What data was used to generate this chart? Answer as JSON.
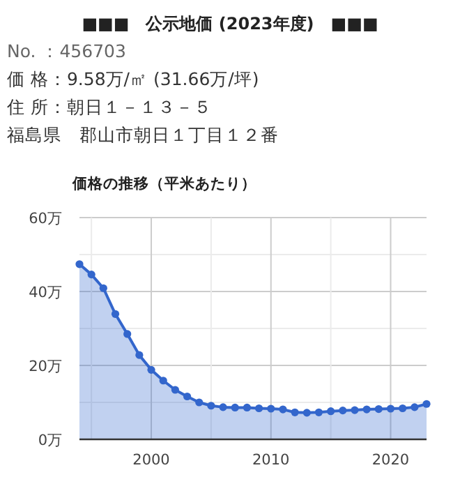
{
  "chart_data": {
    "type": "area",
    "title": "■■■　公示地価 (2023年度)　■■■",
    "subtitle": "価格の推移（平米あたり）",
    "annotations": [
      "No. ：456703",
      "価 格：9.58万/㎡ (31.66万/坪)",
      "住 所：朝日１－１３－５",
      "福島県　郡山市朝日１丁目１２番"
    ],
    "x": [
      1994,
      1995,
      1996,
      1997,
      1998,
      1999,
      2000,
      2001,
      2002,
      2003,
      2004,
      2005,
      2006,
      2007,
      2008,
      2009,
      2010,
      2011,
      2012,
      2013,
      2014,
      2015,
      2016,
      2017,
      2018,
      2019,
      2020,
      2021,
      2022,
      2023
    ],
    "series": [
      {
        "color": "#3366cc",
        "values": [
          47.4,
          44.6,
          40.9,
          33.9,
          28.5,
          22.8,
          18.8,
          15.9,
          13.4,
          11.6,
          10.0,
          9.1,
          8.7,
          8.6,
          8.6,
          8.4,
          8.3,
          8.1,
          7.3,
          7.2,
          7.3,
          7.6,
          7.8,
          7.9,
          8.1,
          8.2,
          8.3,
          8.4,
          8.7,
          9.58
        ]
      }
    ],
    "xlim": [
      1994,
      2023
    ],
    "ylim": [
      0,
      60
    ],
    "xticks": [
      {
        "value": 1995,
        "label": null
      },
      2000,
      {
        "value": 2005,
        "label": null
      },
      2010,
      {
        "value": 2015,
        "label": null
      },
      2020
    ],
    "yticks": [
      {
        "value": 0,
        "label": "0万"
      },
      {
        "value": 10,
        "label": null
      },
      {
        "value": 20,
        "label": "20万"
      },
      {
        "value": 30,
        "label": null
      },
      {
        "value": 40,
        "label": "40万"
      },
      {
        "value": 50,
        "label": null
      },
      {
        "value": 60,
        "label": "60万"
      }
    ],
    "grid": true,
    "marker": "circle"
  }
}
